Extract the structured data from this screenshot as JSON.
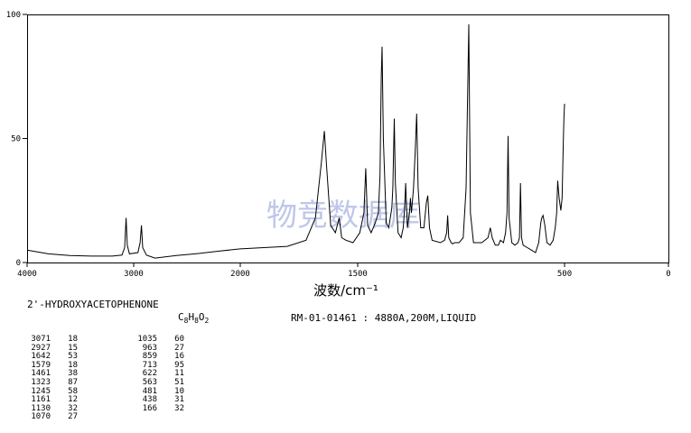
{
  "chart_data": {
    "type": "line",
    "xlabel": "波数/cm⁻¹",
    "x_ticks": [
      4000,
      3000,
      2000,
      1500,
      500,
      0
    ],
    "x_tick_labels": [
      "4000",
      "3000",
      "2000",
      "1500",
      "500",
      "0"
    ],
    "y_ticks": [
      0,
      50,
      100
    ],
    "y_tick_labels": [
      "0",
      "50",
      "100"
    ],
    "xlim": [
      4000,
      0
    ],
    "ylim": [
      0,
      100
    ],
    "axis_note": "nonlinear x axis: 4000–2000 compressed, 2000–0 expanded",
    "grid": false,
    "series": [
      {
        "points": [
          [
            4000,
            5
          ],
          [
            3800,
            3.5
          ],
          [
            3600,
            2.8
          ],
          [
            3400,
            2.6
          ],
          [
            3200,
            2.6
          ],
          [
            3110,
            3
          ],
          [
            3085,
            6
          ],
          [
            3071,
            18
          ],
          [
            3060,
            7
          ],
          [
            3040,
            3.5
          ],
          [
            2960,
            4
          ],
          [
            2940,
            8
          ],
          [
            2927,
            15
          ],
          [
            2915,
            6
          ],
          [
            2880,
            3
          ],
          [
            2800,
            1.8
          ],
          [
            2600,
            2.8
          ],
          [
            2400,
            3.6
          ],
          [
            2200,
            4.6
          ],
          [
            2000,
            5.5
          ],
          [
            1900,
            6
          ],
          [
            1800,
            6.5
          ],
          [
            1720,
            9
          ],
          [
            1680,
            18
          ],
          [
            1655,
            40
          ],
          [
            1642,
            53
          ],
          [
            1632,
            38
          ],
          [
            1615,
            15
          ],
          [
            1595,
            12
          ],
          [
            1579,
            18
          ],
          [
            1568,
            10
          ],
          [
            1550,
            9
          ],
          [
            1520,
            8
          ],
          [
            1490,
            12
          ],
          [
            1470,
            20
          ],
          [
            1461,
            38
          ],
          [
            1452,
            15
          ],
          [
            1435,
            12
          ],
          [
            1415,
            16
          ],
          [
            1400,
            20
          ],
          [
            1392,
            35
          ],
          [
            1386,
            75
          ],
          [
            1382,
            87
          ],
          [
            1376,
            50
          ],
          [
            1362,
            16
          ],
          [
            1350,
            14
          ],
          [
            1335,
            22
          ],
          [
            1330,
            30
          ],
          [
            1323,
            58
          ],
          [
            1318,
            32
          ],
          [
            1305,
            12
          ],
          [
            1290,
            10
          ],
          [
            1280,
            14
          ],
          [
            1273,
            22
          ],
          [
            1268,
            32
          ],
          [
            1260,
            14
          ],
          [
            1250,
            20
          ],
          [
            1245,
            26
          ],
          [
            1240,
            20
          ],
          [
            1230,
            30
          ],
          [
            1222,
            45
          ],
          [
            1215,
            60
          ],
          [
            1208,
            30
          ],
          [
            1195,
            14
          ],
          [
            1180,
            14
          ],
          [
            1168,
            24
          ],
          [
            1161,
            27
          ],
          [
            1153,
            14
          ],
          [
            1140,
            9
          ],
          [
            1100,
            8
          ],
          [
            1080,
            9
          ],
          [
            1070,
            12
          ],
          [
            1065,
            19
          ],
          [
            1060,
            10
          ],
          [
            1048,
            8
          ],
          [
            1040,
            7.5
          ],
          [
            1032,
            8
          ],
          [
            1010,
            8
          ],
          [
            990,
            10
          ],
          [
            976,
            30
          ],
          [
            963,
            96
          ],
          [
            955,
            20
          ],
          [
            940,
            8
          ],
          [
            900,
            8
          ],
          [
            870,
            10
          ],
          [
            859,
            14
          ],
          [
            850,
            10
          ],
          [
            835,
            7
          ],
          [
            820,
            7
          ],
          [
            810,
            9
          ],
          [
            795,
            8
          ],
          [
            785,
            12
          ],
          [
            778,
            20
          ],
          [
            773,
            51
          ],
          [
            768,
            18
          ],
          [
            755,
            8
          ],
          [
            740,
            7
          ],
          [
            725,
            8
          ],
          [
            718,
            10
          ],
          [
            713,
            32
          ],
          [
            708,
            10
          ],
          [
            700,
            7
          ],
          [
            680,
            6
          ],
          [
            660,
            5
          ],
          [
            640,
            4
          ],
          [
            625,
            8
          ],
          [
            615,
            16
          ],
          [
            610,
            18
          ],
          [
            604,
            19
          ],
          [
            595,
            15
          ],
          [
            585,
            8
          ],
          [
            570,
            7
          ],
          [
            555,
            9
          ],
          [
            545,
            14
          ],
          [
            538,
            20
          ],
          [
            533,
            33
          ],
          [
            526,
            26
          ],
          [
            518,
            21
          ],
          [
            512,
            26
          ],
          [
            506,
            48
          ],
          [
            503,
            58
          ],
          [
            500,
            64
          ]
        ]
      }
    ],
    "title": "2'-HYDROXYACETOPHENONE",
    "formula": "C8H8O2",
    "record": "RM-01-01461 : 4880A,200M,LIQUID",
    "peak_table_left": [
      {
        "x": "3071",
        "v": "18"
      },
      {
        "x": "2927",
        "v": "15"
      },
      {
        "x": "1642",
        "v": "53"
      },
      {
        "x": "1579",
        "v": "18"
      },
      {
        "x": "1461",
        "v": "38"
      },
      {
        "x": "1323",
        "v": "87"
      },
      {
        "x": "1245",
        "v": "58"
      },
      {
        "x": "1161",
        "v": "12"
      },
      {
        "x": "1130",
        "v": "32"
      },
      {
        "x": "1070",
        "v": "27"
      }
    ],
    "peak_table_right": [
      {
        "x": "1035",
        "v": "60"
      },
      {
        "x": "963",
        "v": "27"
      },
      {
        "x": "859",
        "v": "16"
      },
      {
        "x": "713",
        "v": "95"
      },
      {
        "x": "622",
        "v": "11"
      },
      {
        "x": "563",
        "v": "51"
      },
      {
        "x": "481",
        "v": "10"
      },
      {
        "x": "438",
        "v": "31"
      },
      {
        "x": "166",
        "v": "32"
      }
    ]
  },
  "watermark": "物竞数据库"
}
